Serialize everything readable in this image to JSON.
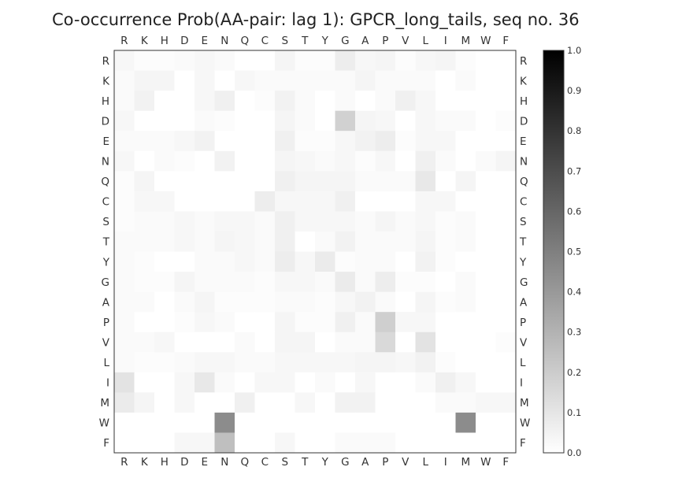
{
  "chart_data": {
    "type": "heatmap",
    "title": "Co-occurrence Prob(AA-pair: lag 1):  GPCR_long_tails, seq no. 36",
    "labels": [
      "R",
      "K",
      "H",
      "D",
      "E",
      "N",
      "Q",
      "C",
      "S",
      "T",
      "Y",
      "G",
      "A",
      "P",
      "V",
      "L",
      "I",
      "M",
      "W",
      "F"
    ],
    "colormap": "gray_r",
    "vmin": 0.0,
    "vmax": 1.0,
    "colorbar_ticks": [
      "0.0",
      "0.1",
      "0.2",
      "0.3",
      "0.4",
      "0.5",
      "0.6",
      "0.7",
      "0.8",
      "0.9",
      "1.0"
    ],
    "values": [
      [
        0.03,
        0.01,
        0.01,
        0.02,
        0.03,
        0.02,
        0.0,
        0.0,
        0.04,
        0.01,
        0.01,
        0.07,
        0.03,
        0.04,
        0.01,
        0.03,
        0.04,
        0.01,
        0.0,
        0.0
      ],
      [
        0.02,
        0.04,
        0.04,
        0.0,
        0.03,
        0.0,
        0.03,
        0.02,
        0.02,
        0.02,
        0.02,
        0.02,
        0.04,
        0.02,
        0.02,
        0.02,
        0.0,
        0.02,
        0.0,
        0.0
      ],
      [
        0.02,
        0.05,
        0.0,
        0.0,
        0.03,
        0.06,
        0.0,
        0.01,
        0.05,
        0.02,
        0.0,
        0.02,
        0.0,
        0.02,
        0.06,
        0.03,
        0.0,
        0.0,
        0.0,
        0.0
      ],
      [
        0.03,
        0.0,
        0.0,
        0.0,
        0.02,
        0.01,
        0.0,
        0.0,
        0.04,
        0.02,
        0.0,
        0.18,
        0.04,
        0.03,
        0.0,
        0.03,
        0.02,
        0.02,
        0.0,
        0.01
      ],
      [
        0.02,
        0.02,
        0.02,
        0.03,
        0.05,
        0.0,
        0.0,
        0.0,
        0.06,
        0.01,
        0.01,
        0.03,
        0.05,
        0.07,
        0.01,
        0.03,
        0.03,
        0.0,
        0.0,
        0.0
      ],
      [
        0.03,
        0.0,
        0.02,
        0.01,
        0.0,
        0.05,
        0.0,
        0.0,
        0.04,
        0.03,
        0.02,
        0.03,
        0.01,
        0.03,
        0.0,
        0.06,
        0.02,
        0.0,
        0.02,
        0.04
      ],
      [
        0.01,
        0.04,
        0.0,
        0.0,
        0.0,
        0.0,
        0.0,
        0.0,
        0.06,
        0.04,
        0.04,
        0.04,
        0.02,
        0.02,
        0.02,
        0.09,
        0.0,
        0.04,
        0.0,
        0.0
      ],
      [
        0.01,
        0.03,
        0.03,
        0.0,
        0.0,
        0.0,
        0.0,
        0.07,
        0.03,
        0.03,
        0.03,
        0.06,
        0.0,
        0.0,
        0.0,
        0.03,
        0.03,
        0.0,
        0.0,
        0.0
      ],
      [
        0.01,
        0.02,
        0.02,
        0.03,
        0.02,
        0.03,
        0.03,
        0.02,
        0.06,
        0.03,
        0.03,
        0.03,
        0.02,
        0.04,
        0.02,
        0.03,
        0.01,
        0.02,
        0.0,
        0.0
      ],
      [
        0.02,
        0.02,
        0.02,
        0.03,
        0.02,
        0.04,
        0.03,
        0.02,
        0.06,
        0.0,
        0.02,
        0.05,
        0.02,
        0.02,
        0.02,
        0.04,
        0.01,
        0.02,
        0.0,
        0.0
      ],
      [
        0.02,
        0.01,
        0.0,
        0.0,
        0.02,
        0.02,
        0.03,
        0.02,
        0.07,
        0.03,
        0.08,
        0.01,
        0.02,
        0.02,
        0.0,
        0.05,
        0.01,
        0.0,
        0.0,
        0.0
      ],
      [
        0.02,
        0.01,
        0.01,
        0.04,
        0.02,
        0.02,
        0.02,
        0.01,
        0.03,
        0.03,
        0.02,
        0.08,
        0.02,
        0.07,
        0.01,
        0.01,
        0.0,
        0.02,
        0.0,
        0.0
      ],
      [
        0.02,
        0.02,
        0.0,
        0.02,
        0.04,
        0.01,
        0.01,
        0.01,
        0.02,
        0.02,
        0.01,
        0.03,
        0.05,
        0.02,
        0.0,
        0.04,
        0.01,
        0.02,
        0.0,
        0.0
      ],
      [
        0.02,
        0.0,
        0.0,
        0.01,
        0.03,
        0.02,
        0.0,
        0.0,
        0.04,
        0.01,
        0.01,
        0.06,
        0.02,
        0.19,
        0.03,
        0.03,
        0.0,
        0.0,
        0.0,
        0.0
      ],
      [
        0.02,
        0.02,
        0.03,
        0.0,
        0.0,
        0.0,
        0.02,
        0.0,
        0.04,
        0.04,
        0.0,
        0.02,
        0.02,
        0.15,
        0.0,
        0.11,
        0.0,
        0.0,
        0.0,
        0.01
      ],
      [
        0.02,
        0.01,
        0.01,
        0.02,
        0.03,
        0.03,
        0.02,
        0.02,
        0.03,
        0.03,
        0.03,
        0.03,
        0.04,
        0.04,
        0.03,
        0.05,
        0.01,
        0.0,
        0.0,
        0.0
      ],
      [
        0.11,
        0.0,
        0.0,
        0.03,
        0.09,
        0.02,
        0.0,
        0.03,
        0.03,
        0.0,
        0.02,
        0.0,
        0.03,
        0.0,
        0.0,
        0.02,
        0.06,
        0.03,
        0.0,
        0.0
      ],
      [
        0.08,
        0.04,
        0.0,
        0.03,
        0.0,
        0.0,
        0.06,
        0.0,
        0.0,
        0.03,
        0.0,
        0.05,
        0.05,
        0.0,
        0.0,
        0.0,
        0.02,
        0.02,
        0.03,
        0.03
      ],
      [
        0.0,
        0.0,
        0.0,
        0.0,
        0.0,
        0.45,
        0.0,
        0.0,
        0.0,
        0.0,
        0.0,
        0.0,
        0.0,
        0.0,
        0.0,
        0.0,
        0.0,
        0.45,
        0.0,
        0.0
      ],
      [
        0.0,
        0.0,
        0.0,
        0.03,
        0.03,
        0.25,
        0.0,
        0.0,
        0.03,
        0.0,
        0.0,
        0.02,
        0.02,
        0.02,
        0.0,
        0.0,
        0.0,
        0.0,
        0.0,
        0.0
      ]
    ]
  }
}
